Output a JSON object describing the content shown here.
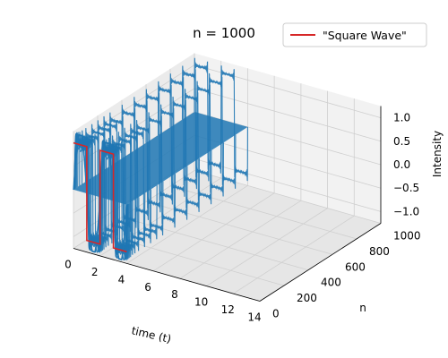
{
  "chart_data": {
    "type": "line",
    "projection": "3d",
    "title": "n = 1000",
    "xlabel": "time (t)",
    "ylabel": "n",
    "zlabel": "Intensity",
    "xlim": [
      0,
      14
    ],
    "ylim": [
      0,
      1000
    ],
    "zlim": [
      -1.25,
      1.25
    ],
    "x_ticks": [
      0,
      2,
      4,
      6,
      8,
      10,
      12,
      14
    ],
    "y_ticks": [
      0,
      200,
      400,
      600,
      800,
      1000
    ],
    "z_ticks": [
      -1.0,
      -0.5,
      0.0,
      0.5,
      1.0
    ],
    "x_tick_labels": [
      "0",
      "2",
      "4",
      "6",
      "8",
      "10",
      "12",
      "14"
    ],
    "y_tick_labels": [
      "0",
      "200",
      "400",
      "600",
      "800",
      "1000"
    ],
    "z_tick_labels": [
      "−1.0",
      "−0.5",
      "0.0",
      "0.5",
      "1.0"
    ],
    "grid": true,
    "legend": {
      "placement": "top-right",
      "entries": [
        "\"Square Wave\""
      ]
    },
    "series": [
      {
        "name": "\"Square Wave\"",
        "kind": "square-wave",
        "plane_n": 0,
        "t_range": [
          0,
          4
        ],
        "amplitude": 1,
        "period_t": 2,
        "color": "#d62728"
      },
      {
        "kind": "partial-sum-surface",
        "description_kind": "Fourier partial sums of square wave over n",
        "n_range": [
          1,
          1000
        ],
        "t_range": [
          0,
          4
        ],
        "color": "#1f77b4"
      }
    ],
    "colors": {
      "surface": "#1f77b4",
      "square_wave": "#d62728"
    }
  }
}
